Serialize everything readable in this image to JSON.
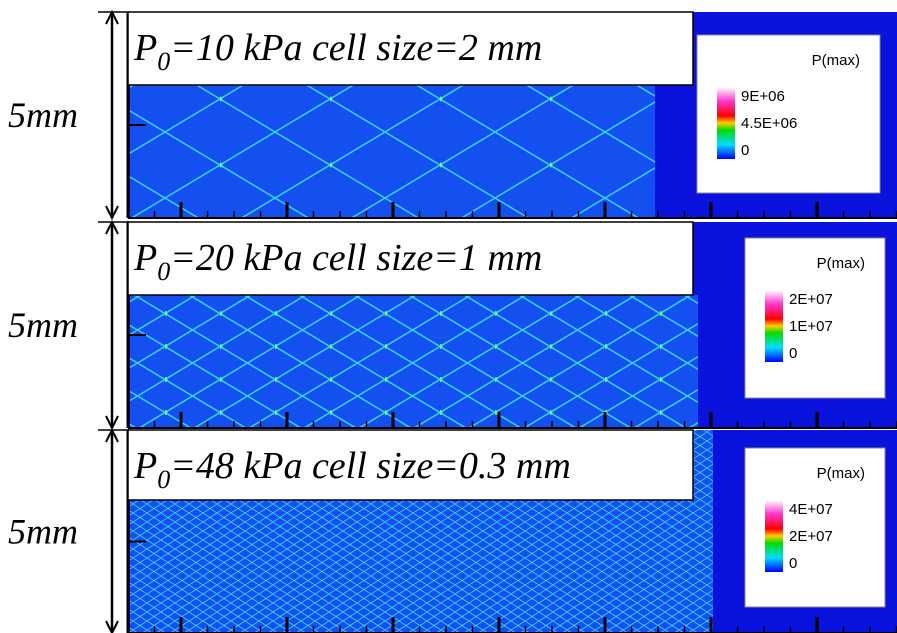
{
  "panels": [
    {
      "height_label": "5mm",
      "title": {
        "symbol": "P",
        "subscript": "0",
        "text": "=10 kPa cell size=2 mm"
      },
      "legend": {
        "title": "P(max)",
        "labels": [
          "9E+06",
          "4.5E+06",
          "0"
        ]
      }
    },
    {
      "height_label": "5mm",
      "title": {
        "symbol": "P",
        "subscript": "0",
        "text": "=20 kPa cell size=1 mm"
      },
      "legend": {
        "title": "P(max)",
        "labels": [
          "2E+07",
          "1E+07",
          "0"
        ]
      }
    },
    {
      "height_label": "5mm",
      "title": {
        "symbol": "P",
        "subscript": "0",
        "text": "=48 kPa cell size=0.3 mm"
      },
      "legend": {
        "title": "P(max)",
        "labels": [
          "4E+07",
          "2E+07",
          "0"
        ]
      }
    }
  ]
}
